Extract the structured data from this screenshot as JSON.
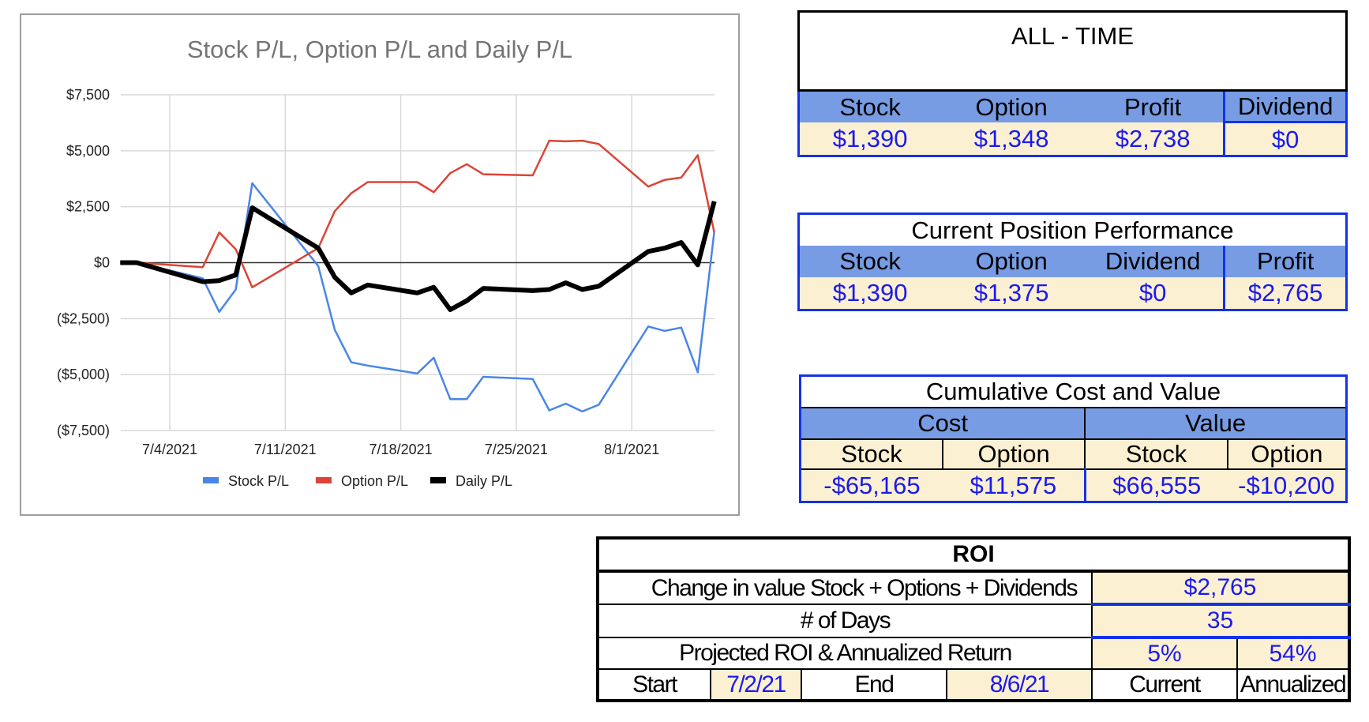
{
  "chart_data": {
    "type": "line",
    "title": "Stock P/L, Option P/L and Daily P/L",
    "xlabel": "",
    "ylabel": "",
    "ylim": [
      -7500,
      7500
    ],
    "yticks": [
      7500,
      5000,
      2500,
      0,
      -2500,
      -5000,
      -7500
    ],
    "ytick_labels": [
      "$7,500",
      "$5,000",
      "$2,500",
      "$0",
      "($2,500)",
      "($5,000)",
      "($7,500)"
    ],
    "xtick_labels": [
      "7/4/2021",
      "7/11/2021",
      "7/18/2021",
      "7/25/2021",
      "8/1/2021"
    ],
    "xtick_days": [
      3,
      10,
      17,
      24,
      31
    ],
    "x_note": "day offset from 7/1/2021",
    "grid": true,
    "legend_position": "bottom",
    "x": [
      0,
      1,
      5,
      6,
      7,
      8,
      12,
      13,
      14,
      15,
      18,
      19,
      20,
      21,
      22,
      25,
      26,
      27,
      28,
      29,
      32,
      33,
      34,
      35,
      36
    ],
    "series": [
      {
        "name": "Stock P/L",
        "color": "#4a86e8",
        "width": 2.5,
        "values": [
          0,
          0,
          -700,
          -2200,
          -1200,
          3550,
          -150,
          -3000,
          -4450,
          -4600,
          -4950,
          -4250,
          -6100,
          -6100,
          -5100,
          -5200,
          -6600,
          -6300,
          -6650,
          -6350,
          -2850,
          -3050,
          -2900,
          -4900,
          1390
        ]
      },
      {
        "name": "Option P/L",
        "color": "#db4437",
        "width": 2.5,
        "values": [
          0,
          0,
          -200,
          1350,
          600,
          -1100,
          650,
          2300,
          3100,
          3600,
          3600,
          3150,
          4000,
          4400,
          3950,
          3900,
          5450,
          5420,
          5450,
          5300,
          3400,
          3700,
          3800,
          4800,
          1348
        ]
      },
      {
        "name": "Daily P/L",
        "color": "#000000",
        "width": 6,
        "values": [
          0,
          0,
          -850,
          -800,
          -550,
          2450,
          650,
          -650,
          -1350,
          -1000,
          -1350,
          -1100,
          -2100,
          -1700,
          -1150,
          -1250,
          -1200,
          -900,
          -1200,
          -1050,
          500,
          650,
          900,
          -100,
          2738
        ]
      }
    ]
  },
  "all_time": {
    "title": "ALL - TIME",
    "headers": [
      "Stock",
      "Option",
      "Profit",
      "Dividend"
    ],
    "values": [
      "$1,390",
      "$1,348",
      "$2,738",
      "$0"
    ]
  },
  "current_position": {
    "title": "Current Position Performance",
    "headers": [
      "Stock",
      "Option",
      "Dividend",
      "Profit"
    ],
    "values": [
      "$1,390",
      "$1,375",
      "$0",
      "$2,765"
    ]
  },
  "cumulative": {
    "title": "Cumulative Cost and Value",
    "groups": [
      "Cost",
      "Value"
    ],
    "headers": [
      "Stock",
      "Option",
      "Stock",
      "Option"
    ],
    "values": [
      "-$65,165",
      "$11,575",
      "$66,555",
      "-$10,200"
    ]
  },
  "roi": {
    "title": "ROI",
    "change_label": "Change in value Stock + Options + Dividends",
    "change_value": "$2,765",
    "days_label": "# of Days",
    "days_value": "35",
    "projected_label": "Projected ROI & Annualized Return",
    "current_roi": "5%",
    "annualized_roi": "54%",
    "start_label": "Start",
    "start_date": "7/2/21",
    "end_label": "End",
    "end_date": "8/6/21",
    "current_label": "Current",
    "annualized_label": "Annualized"
  }
}
